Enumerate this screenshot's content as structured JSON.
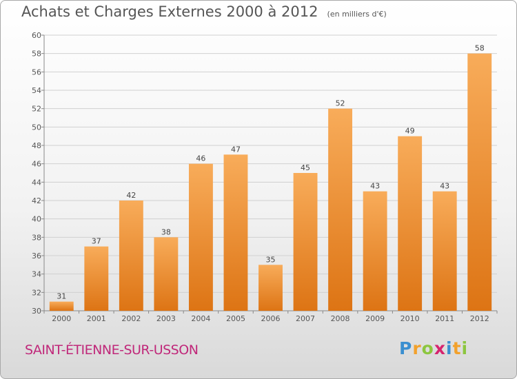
{
  "header": {
    "title": "Achats et Charges Externes 2000 à 2012",
    "subtitle": "(en milliers d'€)"
  },
  "footer": {
    "city": "SAINT-ÉTIENNE-SUR-USSON",
    "logo": {
      "letters": [
        "P",
        "r",
        "o",
        "x",
        "i",
        "t",
        "i"
      ],
      "colors": [
        "#3a8fd0",
        "#f2a12c",
        "#8cc63f",
        "#d6246e",
        "#3a8fd0",
        "#f2a12c",
        "#8cc63f"
      ]
    }
  },
  "colors": {
    "bar_light": "#f8ac5a",
    "bar_dark": "#dd7414",
    "grid": "#d0d0d0",
    "axis": "#888888"
  },
  "chart_data": {
    "type": "bar",
    "categories": [
      "2000",
      "2001",
      "2002",
      "2003",
      "2004",
      "2005",
      "2006",
      "2007",
      "2008",
      "2009",
      "2010",
      "2011",
      "2012"
    ],
    "values": [
      31,
      37,
      42,
      38,
      46,
      47,
      35,
      45,
      52,
      43,
      49,
      43,
      58
    ],
    "title": "Achats et Charges Externes 2000 à 2012",
    "subtitle": "(en milliers d'€)",
    "ylim": [
      30,
      60
    ],
    "yticks": [
      30,
      32,
      34,
      36,
      38,
      40,
      42,
      44,
      46,
      48,
      50,
      52,
      54,
      56,
      58,
      60
    ],
    "grid": true,
    "data_labels": true
  }
}
